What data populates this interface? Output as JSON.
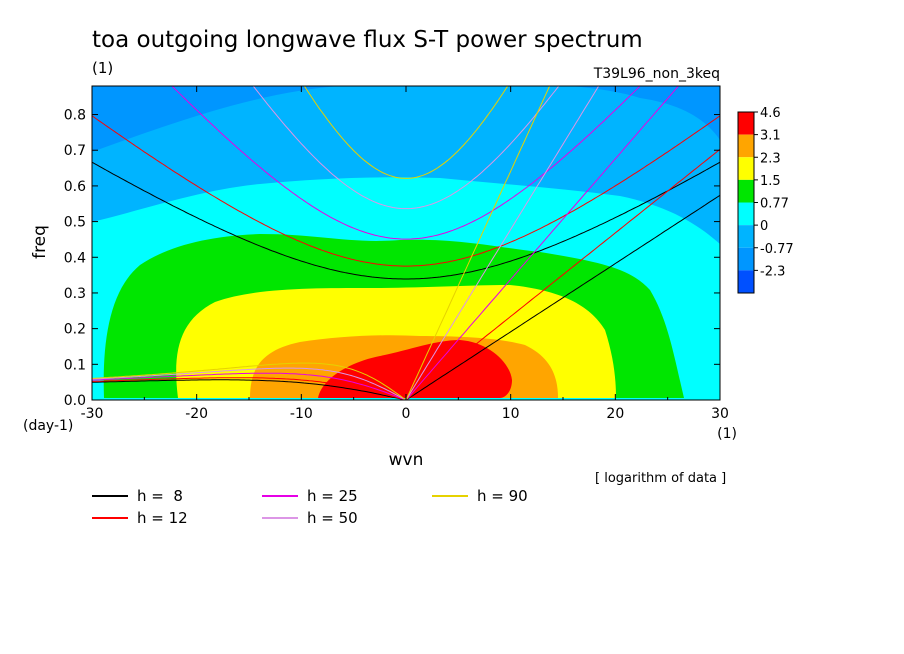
{
  "chart_data": {
    "type": "heatmap",
    "title": "toa outgoing longwave flux S-T power spectrum",
    "title_unit": "(1)",
    "run_label": "T39L96_non_3keq",
    "xlabel": "wvn",
    "xlabel_unit": "(1)",
    "ylabel": "freq",
    "ylabel_unit": "(day-1)",
    "xlim": [
      -30,
      30
    ],
    "ylim": [
      0,
      0.88
    ],
    "xticks": [
      "-30",
      "-20",
      "-10",
      "0",
      "10",
      "20",
      "30"
    ],
    "yticks": [
      "0.0",
      "0.1",
      "0.2",
      "0.3",
      "0.4",
      "0.5",
      "0.6",
      "0.7",
      "0.8"
    ],
    "note": "[ logarithm of data ]",
    "colorbar": {
      "labels": [
        "4.6",
        "3.1",
        "2.3",
        "1.5",
        "0.77",
        "0",
        "-0.77",
        "-2.3"
      ],
      "colors": [
        "#ff0000",
        "#ffa500",
        "#ffff00",
        "#00e600",
        "#00ffff",
        "#00b4ff",
        "#0096ff",
        "#0050ff"
      ]
    },
    "dispersion_curves": [
      {
        "name": "h =  8",
        "equivalent_depth_m": 8,
        "color": "#000000"
      },
      {
        "name": "h = 12",
        "equivalent_depth_m": 12,
        "color": "#ff0000"
      },
      {
        "name": "h = 25",
        "equivalent_depth_m": 25,
        "color": "#e600e6"
      },
      {
        "name": "h = 50",
        "equivalent_depth_m": 50,
        "color": "#dc96e6"
      },
      {
        "name": "h = 90",
        "equivalent_depth_m": 90,
        "color": "#e6d200"
      }
    ]
  }
}
